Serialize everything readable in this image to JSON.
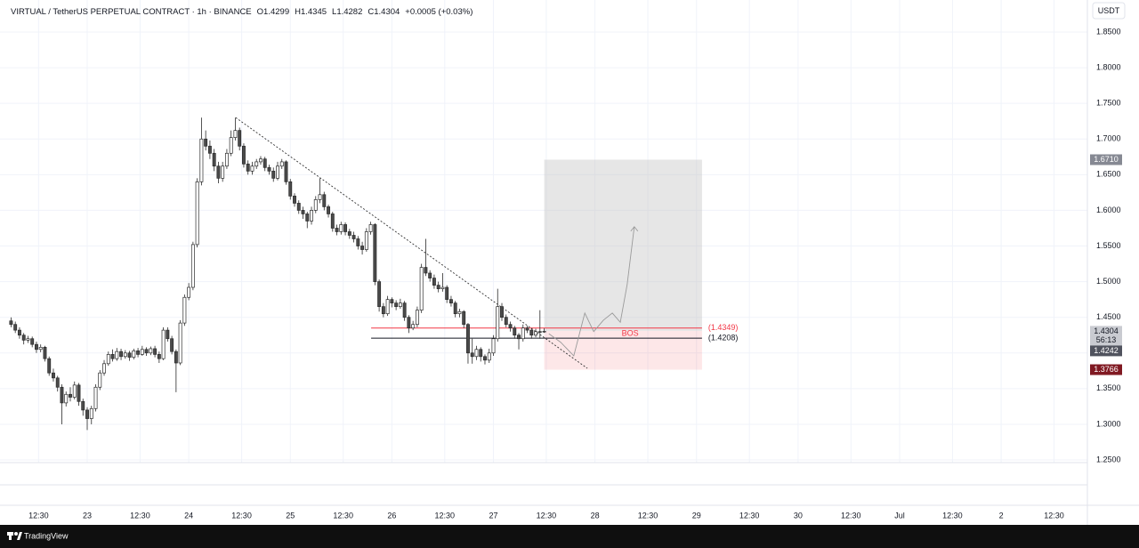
{
  "chart_data": {
    "type": "candlestick",
    "symbol": "VIRTUAL / TetherUS PERPETUAL CONTRACT · 1h · BINANCE",
    "ohlc_text": [
      "O1.4299",
      "H1.4345",
      "L1.4282",
      "C1.4304"
    ],
    "change_text": "+0.0005 (+0.03%)",
    "currency": "USDT",
    "brand": "TradingView",
    "countdown": "56:13",
    "up_color": "#ffffff",
    "down_color": "#4a4a4a",
    "wick_color": "#2a2a2a",
    "grid": true,
    "ylim": [
      1.2463,
      1.8949
    ],
    "yticks": [
      {
        "value": 1.25,
        "label": "1.2500"
      },
      {
        "value": 1.3,
        "label": "1.3000"
      },
      {
        "value": 1.35,
        "label": "1.3500"
      },
      {
        "value": 1.4,
        "label": "1.4000"
      },
      {
        "value": 1.45,
        "label": "1.4500"
      },
      {
        "value": 1.5,
        "label": "1.5000"
      },
      {
        "value": 1.55,
        "label": "1.5500"
      },
      {
        "value": 1.6,
        "label": "1.6000"
      },
      {
        "value": 1.65,
        "label": "1.6500"
      },
      {
        "value": 1.7,
        "label": "1.7000"
      },
      {
        "value": 1.75,
        "label": "1.7500"
      },
      {
        "value": 1.8,
        "label": "1.8000"
      },
      {
        "value": 1.85,
        "label": "1.8500"
      }
    ],
    "xlim": [
      5.07,
      260.38
    ],
    "xticks": [
      {
        "value": 12.5,
        "label": "12:30"
      },
      {
        "value": 24,
        "label": "23"
      },
      {
        "value": 36.5,
        "label": "12:30"
      },
      {
        "value": 48,
        "label": "24"
      },
      {
        "value": 60.5,
        "label": "12:30"
      },
      {
        "value": 72,
        "label": "25"
      },
      {
        "value": 84.5,
        "label": "12:30"
      },
      {
        "value": 96,
        "label": "26"
      },
      {
        "value": 108.5,
        "label": "12:30"
      },
      {
        "value": 120,
        "label": "27"
      },
      {
        "value": 132.5,
        "label": "12:30"
      },
      {
        "value": 144,
        "label": "28"
      },
      {
        "value": 156.5,
        "label": "12:30"
      },
      {
        "value": 168,
        "label": "29"
      },
      {
        "value": 180.5,
        "label": "12:30"
      },
      {
        "value": 192,
        "label": "30"
      },
      {
        "value": 204.5,
        "label": "12:30"
      },
      {
        "value": 216,
        "label": "Jul"
      },
      {
        "value": 228.5,
        "label": "12:30"
      },
      {
        "value": 240,
        "label": "2"
      },
      {
        "value": 252.5,
        "label": "12:30"
      }
    ],
    "x": [
      6,
      7,
      8,
      9,
      10,
      11,
      12,
      13,
      14,
      15,
      16,
      17,
      18,
      19,
      20,
      21,
      22,
      23,
      24,
      25,
      26,
      27,
      28,
      29,
      30,
      31,
      32,
      33,
      34,
      35,
      36,
      37,
      38,
      39,
      40,
      41,
      42,
      43,
      44,
      45,
      46,
      47,
      48,
      49,
      50,
      51,
      52,
      53,
      54,
      55,
      56,
      57,
      58,
      59,
      60,
      61,
      62,
      63,
      64,
      65,
      66,
      67,
      68,
      69,
      70,
      71,
      72,
      73,
      74,
      75,
      76,
      77,
      78,
      79,
      80,
      81,
      82,
      83,
      84,
      85,
      86,
      87,
      88,
      89,
      90,
      91,
      92,
      93,
      94,
      95,
      96,
      97,
      98,
      99,
      100,
      101,
      102,
      103,
      104,
      105,
      106,
      107,
      108,
      109,
      110,
      111,
      112,
      113,
      114,
      115,
      116,
      117,
      118,
      119,
      120,
      121,
      122,
      123,
      124,
      125,
      126,
      127,
      128,
      129,
      130,
      131,
      132
    ],
    "candles": [
      [
        1.445,
        1.45,
        1.436,
        1.44
      ],
      [
        1.44,
        1.444,
        1.428,
        1.432
      ],
      [
        1.432,
        1.436,
        1.42,
        1.425
      ],
      [
        1.425,
        1.428,
        1.412,
        1.418
      ],
      [
        1.418,
        1.424,
        1.414,
        1.42
      ],
      [
        1.42,
        1.423,
        1.408,
        1.412
      ],
      [
        1.412,
        1.416,
        1.4,
        1.405
      ],
      [
        1.405,
        1.412,
        1.401,
        1.408
      ],
      [
        1.408,
        1.41,
        1.388,
        1.392
      ],
      [
        1.392,
        1.395,
        1.368,
        1.372
      ],
      [
        1.372,
        1.378,
        1.36,
        1.365
      ],
      [
        1.365,
        1.368,
        1.346,
        1.352
      ],
      [
        1.352,
        1.356,
        1.3,
        1.33
      ],
      [
        1.33,
        1.346,
        1.325,
        1.342
      ],
      [
        1.342,
        1.352,
        1.332,
        1.338
      ],
      [
        1.338,
        1.36,
        1.335,
        1.355
      ],
      [
        1.355,
        1.358,
        1.326,
        1.332
      ],
      [
        1.332,
        1.336,
        1.312,
        1.32
      ],
      [
        1.32,
        1.324,
        1.292,
        1.308
      ],
      [
        1.308,
        1.326,
        1.3,
        1.322
      ],
      [
        1.322,
        1.356,
        1.318,
        1.352
      ],
      [
        1.352,
        1.376,
        1.348,
        1.372
      ],
      [
        1.372,
        1.39,
        1.368,
        1.385
      ],
      [
        1.385,
        1.402,
        1.382,
        1.398
      ],
      [
        1.398,
        1.405,
        1.388,
        1.392
      ],
      [
        1.392,
        1.407,
        1.389,
        1.402
      ],
      [
        1.402,
        1.406,
        1.39,
        1.395
      ],
      [
        1.395,
        1.404,
        1.392,
        1.4
      ],
      [
        1.4,
        1.403,
        1.389,
        1.394
      ],
      [
        1.394,
        1.406,
        1.391,
        1.403
      ],
      [
        1.403,
        1.407,
        1.394,
        1.398
      ],
      [
        1.398,
        1.41,
        1.396,
        1.405
      ],
      [
        1.405,
        1.408,
        1.396,
        1.4
      ],
      [
        1.4,
        1.409,
        1.397,
        1.406
      ],
      [
        1.406,
        1.41,
        1.394,
        1.398
      ],
      [
        1.398,
        1.402,
        1.386,
        1.392
      ],
      [
        1.392,
        1.436,
        1.39,
        1.432
      ],
      [
        1.432,
        1.436,
        1.416,
        1.42
      ],
      [
        1.42,
        1.424,
        1.398,
        1.402
      ],
      [
        1.402,
        1.405,
        1.345,
        1.386
      ],
      [
        1.386,
        1.446,
        1.383,
        1.442
      ],
      [
        1.442,
        1.482,
        1.438,
        1.478
      ],
      [
        1.478,
        1.498,
        1.474,
        1.492
      ],
      [
        1.492,
        1.556,
        1.488,
        1.552
      ],
      [
        1.552,
        1.645,
        1.548,
        1.64
      ],
      [
        1.64,
        1.73,
        1.635,
        1.7
      ],
      [
        1.7,
        1.712,
        1.684,
        1.69
      ],
      [
        1.69,
        1.698,
        1.672,
        1.68
      ],
      [
        1.68,
        1.686,
        1.655,
        1.662
      ],
      [
        1.662,
        1.668,
        1.638,
        1.645
      ],
      [
        1.645,
        1.668,
        1.64,
        1.662
      ],
      [
        1.662,
        1.686,
        1.658,
        1.68
      ],
      [
        1.68,
        1.712,
        1.676,
        1.702
      ],
      [
        1.702,
        1.73,
        1.698,
        1.712
      ],
      [
        1.712,
        1.716,
        1.684,
        1.69
      ],
      [
        1.69,
        1.694,
        1.66,
        1.665
      ],
      [
        1.665,
        1.67,
        1.65,
        1.655
      ],
      [
        1.655,
        1.668,
        1.65,
        1.662
      ],
      [
        1.662,
        1.672,
        1.658,
        1.668
      ],
      [
        1.668,
        1.676,
        1.664,
        1.672
      ],
      [
        1.672,
        1.675,
        1.655,
        1.66
      ],
      [
        1.66,
        1.664,
        1.65,
        1.655
      ],
      [
        1.655,
        1.66,
        1.64,
        1.645
      ],
      [
        1.645,
        1.668,
        1.642,
        1.662
      ],
      [
        1.662,
        1.672,
        1.658,
        1.668
      ],
      [
        1.668,
        1.67,
        1.636,
        1.64
      ],
      [
        1.64,
        1.644,
        1.615,
        1.62
      ],
      [
        1.62,
        1.624,
        1.605,
        1.61
      ],
      [
        1.61,
        1.614,
        1.595,
        1.6
      ],
      [
        1.6,
        1.605,
        1.588,
        1.595
      ],
      [
        1.595,
        1.598,
        1.575,
        1.585
      ],
      [
        1.585,
        1.605,
        1.58,
        1.6
      ],
      [
        1.6,
        1.62,
        1.596,
        1.615
      ],
      [
        1.615,
        1.645,
        1.61,
        1.622
      ],
      [
        1.622,
        1.626,
        1.6,
        1.605
      ],
      [
        1.605,
        1.608,
        1.59,
        1.595
      ],
      [
        1.595,
        1.598,
        1.57,
        1.575
      ],
      [
        1.575,
        1.58,
        1.565,
        1.57
      ],
      [
        1.57,
        1.584,
        1.566,
        1.58
      ],
      [
        1.58,
        1.583,
        1.565,
        1.57
      ],
      [
        1.57,
        1.574,
        1.56,
        1.565
      ],
      [
        1.565,
        1.57,
        1.555,
        1.56
      ],
      [
        1.56,
        1.564,
        1.545,
        1.55
      ],
      [
        1.55,
        1.556,
        1.538,
        1.545
      ],
      [
        1.545,
        1.575,
        1.542,
        1.57
      ],
      [
        1.57,
        1.584,
        1.566,
        1.58
      ],
      [
        1.58,
        1.582,
        1.495,
        1.5
      ],
      [
        1.5,
        1.503,
        1.458,
        1.465
      ],
      [
        1.465,
        1.47,
        1.45,
        1.455
      ],
      [
        1.455,
        1.48,
        1.452,
        1.475
      ],
      [
        1.475,
        1.478,
        1.464,
        1.47
      ],
      [
        1.47,
        1.474,
        1.46,
        1.465
      ],
      [
        1.465,
        1.476,
        1.462,
        1.47
      ],
      [
        1.47,
        1.473,
        1.445,
        1.45
      ],
      [
        1.45,
        1.453,
        1.428,
        1.435
      ],
      [
        1.435,
        1.445,
        1.432,
        1.44
      ],
      [
        1.44,
        1.465,
        1.436,
        1.46
      ],
      [
        1.46,
        1.525,
        1.456,
        1.52
      ],
      [
        1.52,
        1.56,
        1.508,
        1.512
      ],
      [
        1.512,
        1.516,
        1.5,
        1.505
      ],
      [
        1.505,
        1.51,
        1.49,
        1.495
      ],
      [
        1.495,
        1.5,
        1.485,
        1.49
      ],
      [
        1.49,
        1.512,
        1.486,
        1.492
      ],
      [
        1.492,
        1.495,
        1.47,
        1.475
      ],
      [
        1.475,
        1.48,
        1.465,
        1.47
      ],
      [
        1.47,
        1.473,
        1.45,
        1.455
      ],
      [
        1.455,
        1.462,
        1.45,
        1.458
      ],
      [
        1.458,
        1.46,
        1.435,
        1.44
      ],
      [
        1.44,
        1.442,
        1.385,
        1.4
      ],
      [
        1.4,
        1.42,
        1.385,
        1.395
      ],
      [
        1.395,
        1.41,
        1.39,
        1.405
      ],
      [
        1.405,
        1.408,
        1.388,
        1.395
      ],
      [
        1.395,
        1.398,
        1.384,
        1.39
      ],
      [
        1.39,
        1.406,
        1.386,
        1.4
      ],
      [
        1.4,
        1.425,
        1.396,
        1.42
      ],
      [
        1.42,
        1.49,
        1.416,
        1.465
      ],
      [
        1.465,
        1.47,
        1.445,
        1.45
      ],
      [
        1.45,
        1.454,
        1.436,
        1.44
      ],
      [
        1.44,
        1.444,
        1.43,
        1.435
      ],
      [
        1.435,
        1.438,
        1.42,
        1.425
      ],
      [
        1.425,
        1.428,
        1.405,
        1.42
      ],
      [
        1.42,
        1.44,
        1.416,
        1.435
      ],
      [
        1.435,
        1.438,
        1.428,
        1.432
      ],
      [
        1.432,
        1.435,
        1.42,
        1.425
      ],
      [
        1.425,
        1.434,
        1.422,
        1.43
      ],
      [
        1.43,
        1.46,
        1.42,
        1.4299
      ],
      [
        1.4299,
        1.4345,
        1.4282,
        1.4304
      ]
    ],
    "trendline": {
      "x": [
        59.1,
        142.2
      ],
      "y": [
        1.73,
        1.3785
      ]
    },
    "position": {
      "x": [
        132,
        169.3
      ],
      "entry": 1.431,
      "target": {
        "value": 1.671,
        "label": "1.6710"
      },
      "stop": {
        "value": 1.3766,
        "label": "1.3766"
      }
    },
    "levels": [
      {
        "value": 1.4349,
        "label": "(1.4349)",
        "color": "#f23645",
        "x": [
          91.1,
          169.3
        ]
      },
      {
        "value": 1.4208,
        "label": "(1.4208)",
        "color": "#131722",
        "x": [
          91.1,
          169.3
        ]
      }
    ],
    "bos": {
      "label": "BOS",
      "x": 152.3,
      "y": 1.427,
      "color": "#f23645"
    },
    "projection": {
      "x": [
        133.1,
        135.9,
        139,
        141.6,
        143.7,
        146,
        148.1,
        150,
        151.6,
        153.3
      ],
      "y": [
        1.427,
        1.415,
        1.396,
        1.456,
        1.43,
        1.446,
        1.456,
        1.443,
        1.496,
        1.577
      ]
    },
    "last_price": {
      "value": 1.4304,
      "label": "1.4304"
    },
    "mark_price": {
      "value": 1.4242,
      "label": "1.4242"
    }
  }
}
